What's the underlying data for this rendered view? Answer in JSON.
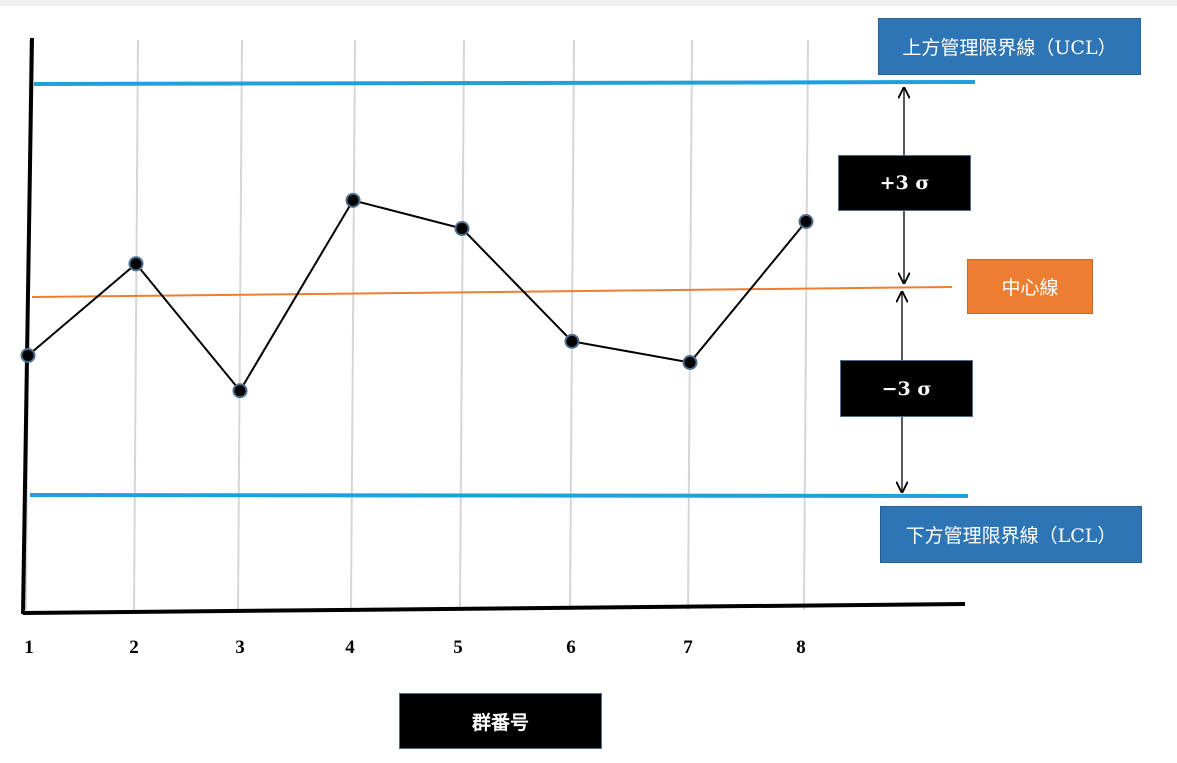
{
  "chart_data": {
    "type": "line",
    "categories": [
      "1",
      "2",
      "3",
      "4",
      "5",
      "6",
      "7",
      "8"
    ],
    "series": [
      {
        "values": [
          -0.9,
          0.4,
          -1.4,
          1.3,
          0.9,
          -0.7,
          -1.0,
          1.0
        ]
      }
    ],
    "center_line": {
      "label": "中心線",
      "value": 0,
      "color": "#ed7d31"
    },
    "ucl": {
      "label": "上方管理限界線（UCL）",
      "value": 3,
      "color": "#1ea0dc"
    },
    "lcl": {
      "label": "下方管理限界線（LCL）",
      "value": -3,
      "color": "#1ea0dc"
    },
    "plus_sigma_label": "+3 σ",
    "minus_sigma_label": "−3 σ",
    "xlabel": "群番号",
    "grid": "vertical",
    "line_color": "#000000",
    "marker_color": "#000000"
  }
}
